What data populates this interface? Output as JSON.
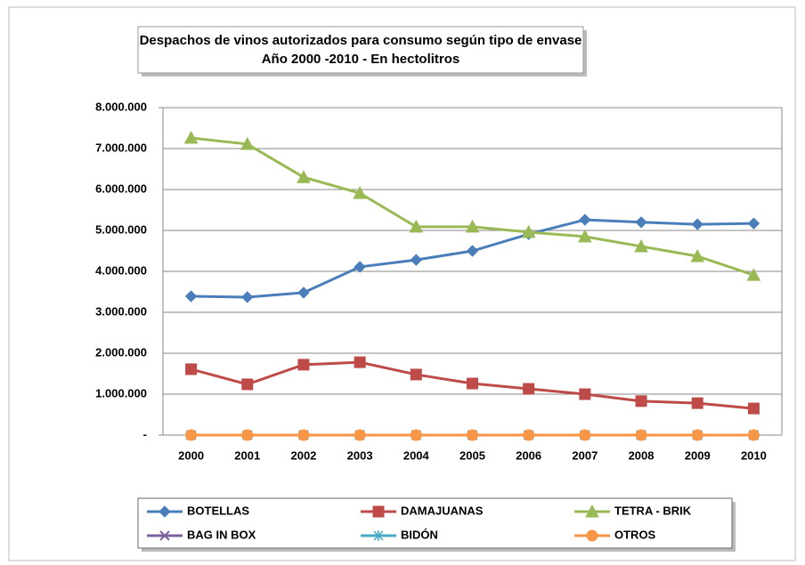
{
  "chart_data": {
    "type": "line",
    "title": "Despachos de vinos autorizados para consumo según tipo de envase",
    "subtitle": "Año 2000  -2010 - En hectolitros",
    "categories": [
      "2000",
      "2001",
      "2002",
      "2003",
      "2004",
      "2005",
      "2006",
      "2007",
      "2008",
      "2009",
      "2010"
    ],
    "series": [
      {
        "name": "BOTELLAS",
        "color": "#4a7ebb",
        "marker": "diamond",
        "values": [
          3390000,
          3370000,
          3480000,
          4110000,
          4280000,
          4500000,
          4910000,
          5260000,
          5200000,
          5150000,
          5170000
        ]
      },
      {
        "name": "DAMAJUANAS",
        "color": "#be4b48",
        "marker": "square",
        "values": [
          1610000,
          1240000,
          1720000,
          1780000,
          1480000,
          1260000,
          1130000,
          1000000,
          830000,
          780000,
          650000
        ]
      },
      {
        "name": "TETRA - BRIK",
        "color": "#98b954",
        "marker": "triangle",
        "values": [
          7260000,
          7110000,
          6300000,
          5910000,
          5090000,
          5090000,
          4960000,
          4850000,
          4610000,
          4370000,
          3910000
        ]
      },
      {
        "name": "BAG IN BOX",
        "color": "#7d60a0",
        "marker": "x",
        "values": [
          0,
          0,
          0,
          0,
          0,
          0,
          0,
          0,
          0,
          0,
          0
        ]
      },
      {
        "name": "BIDÓN",
        "color": "#46aac5",
        "marker": "star",
        "values": [
          0,
          0,
          0,
          0,
          0,
          0,
          0,
          0,
          0,
          0,
          0
        ]
      },
      {
        "name": "OTROS",
        "color": "#f79646",
        "marker": "circle",
        "values": [
          0,
          0,
          0,
          0,
          0,
          0,
          0,
          0,
          0,
          0,
          0
        ]
      }
    ],
    "ylim": [
      0,
      8000000
    ],
    "yticks": [
      {
        "value": 0,
        "label": "-"
      },
      {
        "value": 1000000,
        "label": "1.000.000"
      },
      {
        "value": 2000000,
        "label": "2.000.000"
      },
      {
        "value": 3000000,
        "label": "3.000.000"
      },
      {
        "value": 4000000,
        "label": "4.000.000"
      },
      {
        "value": 5000000,
        "label": "5.000.000"
      },
      {
        "value": 6000000,
        "label": "6.000.000"
      },
      {
        "value": 7000000,
        "label": "7.000.000"
      },
      {
        "value": 8000000,
        "label": "8.000.000"
      }
    ],
    "grid": true,
    "legend": "bottom"
  }
}
